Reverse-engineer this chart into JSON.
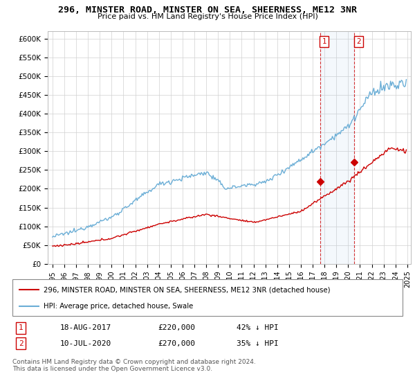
{
  "title": "296, MINSTER ROAD, MINSTER ON SEA, SHEERNESS, ME12 3NR",
  "subtitle": "Price paid vs. HM Land Registry's House Price Index (HPI)",
  "legend_line1": "296, MINSTER ROAD, MINSTER ON SEA, SHEERNESS, ME12 3NR (detached house)",
  "legend_line2": "HPI: Average price, detached house, Swale",
  "footer": "Contains HM Land Registry data © Crown copyright and database right 2024.\nThis data is licensed under the Open Government Licence v3.0.",
  "hpi_color": "#6baed6",
  "price_color": "#cc0000",
  "ann1_x": 2017.63,
  "ann2_x": 2020.53,
  "ann1_y": 220000,
  "ann2_y": 270000,
  "ann1_label": "1",
  "ann2_label": "2",
  "ann1_date": "18-AUG-2017",
  "ann1_price": "£220,000",
  "ann1_pct": "42% ↓ HPI",
  "ann2_date": "10-JUL-2020",
  "ann2_price": "£270,000",
  "ann2_pct": "35% ↓ HPI",
  "ylim": [
    0,
    620000
  ],
  "xlim_start": 1994.6,
  "xlim_end": 2025.3,
  "yticks": [
    0,
    50000,
    100000,
    150000,
    200000,
    250000,
    300000,
    350000,
    400000,
    450000,
    500000,
    550000,
    600000
  ],
  "ytick_labels": [
    "£0",
    "£50K",
    "£100K",
    "£150K",
    "£200K",
    "£250K",
    "£300K",
    "£350K",
    "£400K",
    "£450K",
    "£500K",
    "£550K",
    "£600K"
  ]
}
